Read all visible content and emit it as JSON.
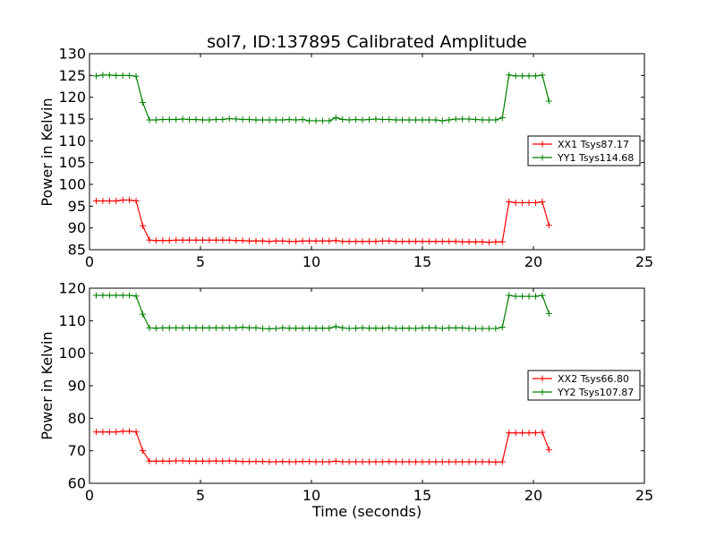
{
  "chart_data": [
    {
      "type": "line",
      "title": "sol7, ID:137895 Calibrated Amplitude",
      "xlabel": "",
      "ylabel": "Power in Kelvin",
      "xlim": [
        0,
        25
      ],
      "ylim": [
        85,
        130
      ],
      "xticks": [
        0,
        5,
        10,
        15,
        20,
        25
      ],
      "yticks": [
        85,
        90,
        95,
        100,
        105,
        110,
        115,
        120,
        125,
        130
      ],
      "legend_position": "center-right",
      "x": [
        0.3,
        0.6,
        0.9,
        1.2,
        1.5,
        1.8,
        2.1,
        2.4,
        2.7,
        3.0,
        3.3,
        3.6,
        3.9,
        4.2,
        4.5,
        4.8,
        5.1,
        5.4,
        5.7,
        6.0,
        6.3,
        6.6,
        6.9,
        7.2,
        7.5,
        7.8,
        8.1,
        8.4,
        8.7,
        9.0,
        9.3,
        9.6,
        9.9,
        10.2,
        10.5,
        10.8,
        11.1,
        11.4,
        11.7,
        12.0,
        12.3,
        12.6,
        12.9,
        13.2,
        13.5,
        13.8,
        14.1,
        14.4,
        14.7,
        15.0,
        15.3,
        15.6,
        15.9,
        16.2,
        16.5,
        16.8,
        17.1,
        17.4,
        17.7,
        18.0,
        18.3,
        18.6,
        18.9,
        19.2,
        19.5,
        19.8,
        20.1,
        20.4,
        20.7
      ],
      "series": [
        {
          "name": "XX1 Tsys87.17",
          "color": "#ff0000",
          "values": [
            96.2,
            96.2,
            96.2,
            96.2,
            96.4,
            96.4,
            96.2,
            90.5,
            87.2,
            87.1,
            87.1,
            87.1,
            87.2,
            87.2,
            87.2,
            87.2,
            87.2,
            87.2,
            87.2,
            87.2,
            87.2,
            87.1,
            87.1,
            87.0,
            87.0,
            87.0,
            86.9,
            87.0,
            87.0,
            86.9,
            86.9,
            87.0,
            87.0,
            87.0,
            87.0,
            87.0,
            87.1,
            86.9,
            86.9,
            86.9,
            86.9,
            86.9,
            86.9,
            87.0,
            87.0,
            86.9,
            86.9,
            86.9,
            86.9,
            86.9,
            86.9,
            86.9,
            86.9,
            86.9,
            86.9,
            86.8,
            86.8,
            86.8,
            86.8,
            86.7,
            86.8,
            86.8,
            96.0,
            95.8,
            95.8,
            95.8,
            95.8,
            96.0,
            90.6
          ]
        },
        {
          "name": "YY1 Tsys114.68",
          "color": "#008000",
          "values": [
            124.9,
            125.1,
            125.1,
            125.0,
            125.0,
            125.0,
            124.8,
            118.8,
            114.8,
            114.8,
            114.9,
            114.9,
            114.9,
            115.0,
            114.9,
            114.9,
            114.8,
            114.8,
            114.9,
            114.9,
            115.1,
            115.0,
            114.9,
            114.9,
            114.8,
            114.8,
            114.8,
            114.8,
            114.8,
            114.9,
            114.8,
            114.9,
            114.6,
            114.6,
            114.6,
            114.6,
            115.3,
            114.9,
            114.8,
            114.9,
            114.8,
            114.9,
            115.0,
            114.9,
            114.9,
            114.8,
            114.8,
            114.8,
            114.8,
            114.8,
            114.8,
            114.8,
            114.6,
            114.8,
            115.0,
            115.0,
            115.0,
            114.9,
            114.8,
            114.8,
            114.8,
            115.3,
            125.1,
            124.9,
            124.9,
            124.9,
            124.9,
            125.1,
            119.1
          ]
        }
      ]
    },
    {
      "type": "line",
      "title": "",
      "xlabel": "Time (seconds)",
      "ylabel": "Power in Kelvin",
      "xlim": [
        0,
        25
      ],
      "ylim": [
        60,
        120
      ],
      "xticks": [
        0,
        5,
        10,
        15,
        20,
        25
      ],
      "yticks": [
        60,
        70,
        80,
        90,
        100,
        110,
        120
      ],
      "legend_position": "center-right",
      "x": [
        0.3,
        0.6,
        0.9,
        1.2,
        1.5,
        1.8,
        2.1,
        2.4,
        2.7,
        3.0,
        3.3,
        3.6,
        3.9,
        4.2,
        4.5,
        4.8,
        5.1,
        5.4,
        5.7,
        6.0,
        6.3,
        6.6,
        6.9,
        7.2,
        7.5,
        7.8,
        8.1,
        8.4,
        8.7,
        9.0,
        9.3,
        9.6,
        9.9,
        10.2,
        10.5,
        10.8,
        11.1,
        11.4,
        11.7,
        12.0,
        12.3,
        12.6,
        12.9,
        13.2,
        13.5,
        13.8,
        14.1,
        14.4,
        14.7,
        15.0,
        15.3,
        15.6,
        15.9,
        16.2,
        16.5,
        16.8,
        17.1,
        17.4,
        17.7,
        18.0,
        18.3,
        18.6,
        18.9,
        19.2,
        19.5,
        19.8,
        20.1,
        20.4,
        20.7
      ],
      "series": [
        {
          "name": "XX2 Tsys66.80",
          "color": "#ff0000",
          "values": [
            75.8,
            75.8,
            75.8,
            75.8,
            76.0,
            76.0,
            75.8,
            70.0,
            66.8,
            66.8,
            66.8,
            66.8,
            66.9,
            66.9,
            66.8,
            66.8,
            66.8,
            66.8,
            66.9,
            66.8,
            66.9,
            66.8,
            66.7,
            66.7,
            66.7,
            66.7,
            66.6,
            66.6,
            66.7,
            66.6,
            66.6,
            66.7,
            66.7,
            66.6,
            66.6,
            66.6,
            66.8,
            66.6,
            66.6,
            66.6,
            66.6,
            66.6,
            66.6,
            66.6,
            66.7,
            66.6,
            66.6,
            66.6,
            66.6,
            66.6,
            66.6,
            66.6,
            66.6,
            66.6,
            66.6,
            66.6,
            66.6,
            66.6,
            66.6,
            66.6,
            66.5,
            66.6,
            75.5,
            75.5,
            75.5,
            75.5,
            75.5,
            75.7,
            70.3
          ]
        },
        {
          "name": "YY2 Tsys107.87",
          "color": "#008000",
          "values": [
            117.8,
            117.8,
            117.8,
            117.8,
            117.8,
            117.8,
            117.6,
            112.0,
            107.8,
            107.7,
            107.8,
            107.8,
            107.8,
            107.8,
            107.8,
            107.8,
            107.8,
            107.8,
            107.8,
            107.8,
            107.8,
            107.8,
            108.0,
            107.8,
            107.8,
            107.6,
            107.5,
            107.6,
            107.8,
            107.7,
            107.7,
            107.7,
            107.7,
            107.7,
            107.7,
            107.7,
            108.2,
            107.8,
            107.6,
            107.7,
            107.8,
            107.7,
            107.7,
            107.7,
            107.8,
            107.6,
            107.7,
            107.7,
            107.6,
            107.8,
            107.8,
            107.8,
            107.6,
            107.8,
            107.8,
            107.8,
            107.6,
            107.6,
            107.6,
            107.6,
            107.6,
            108.0,
            117.8,
            117.5,
            117.5,
            117.5,
            117.5,
            117.8,
            112.2
          ]
        }
      ]
    }
  ]
}
